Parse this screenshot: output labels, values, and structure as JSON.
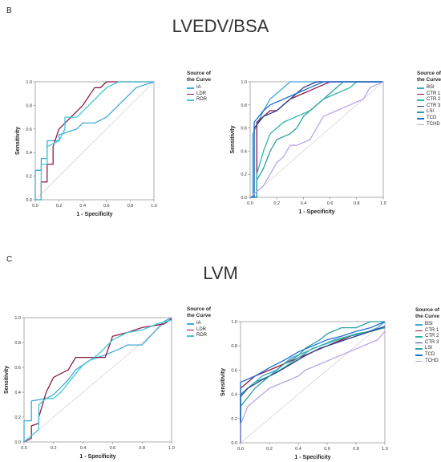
{
  "panels": [
    {
      "letter": "B",
      "title": "LVEDV/BSA"
    },
    {
      "letter": "C",
      "title": "LVM"
    }
  ],
  "legend_title": "Source of the Curve",
  "colors": {
    "IA": "#3fa9d6",
    "LDR": "#8b1a4a",
    "RDR": "#3fc7d9",
    "BSI": "#3fa9d6",
    "CTR 1": "#8b1a4a",
    "CTR 2": "#2cb6a9",
    "CTR 3": "#2c3f8c",
    "LSI": "#2ea0a3",
    "TCD": "#1f6fd0",
    "TCHD": "#b9a5e6"
  },
  "chart_data": [
    {
      "type": "line",
      "xlabel": "1 - Specificity",
      "ylabel": "Sensitivity",
      "xlim": [
        0,
        1
      ],
      "ylim": [
        0,
        1
      ],
      "xticks": [
        "0.0",
        "0.2",
        "0.4",
        "0.6",
        "0.8",
        "1.0"
      ],
      "yticks": [
        "0.0",
        "0.2",
        "0.4",
        "0.6",
        "0.8",
        "1.0"
      ],
      "series": [
        {
          "name": "IA",
          "x": [
            0,
            0,
            0.05,
            0.05,
            0.1,
            0.1,
            0.2,
            0.2,
            0.35,
            0.4,
            0.5,
            0.6,
            0.75,
            0.85,
            1
          ],
          "y": [
            0,
            0.25,
            0.25,
            0.35,
            0.35,
            0.5,
            0.5,
            0.55,
            0.6,
            0.65,
            0.65,
            0.7,
            0.85,
            0.95,
            1
          ]
        },
        {
          "name": "LDR",
          "x": [
            0,
            0.05,
            0.05,
            0.1,
            0.1,
            0.15,
            0.15,
            0.2,
            0.25,
            0.3,
            0.35,
            0.4,
            0.5,
            0.55,
            0.6,
            1
          ],
          "y": [
            0,
            0,
            0.15,
            0.15,
            0.3,
            0.3,
            0.45,
            0.6,
            0.65,
            0.7,
            0.75,
            0.8,
            0.95,
            0.95,
            1,
            1
          ]
        },
        {
          "name": "RDR",
          "x": [
            0,
            0.05,
            0.05,
            0.1,
            0.1,
            0.2,
            0.25,
            0.25,
            0.35,
            0.45,
            0.55,
            0.6,
            0.7,
            1
          ],
          "y": [
            0,
            0,
            0.3,
            0.3,
            0.45,
            0.5,
            0.6,
            0.7,
            0.7,
            0.8,
            0.9,
            0.95,
            1,
            1
          ]
        }
      ]
    },
    {
      "type": "line",
      "xlabel": "1 - Specificity",
      "ylabel": "Sensitivity",
      "xlim": [
        0,
        1
      ],
      "ylim": [
        0,
        1
      ],
      "xticks": [
        "0.0",
        "0.2",
        "0.4",
        "0.6",
        "0.8",
        "1.0"
      ],
      "yticks": [
        "0.0",
        "0.2",
        "0.4",
        "0.6",
        "0.8",
        "1.0"
      ],
      "series": [
        {
          "name": "BSI",
          "x": [
            0,
            0.02,
            0.02,
            0.08,
            0.1,
            0.15,
            0.2,
            0.25,
            0.3,
            0.38,
            1
          ],
          "y": [
            0,
            0,
            0.55,
            0.7,
            0.75,
            0.85,
            0.9,
            0.95,
            1,
            1,
            1
          ]
        },
        {
          "name": "CTR 1",
          "x": [
            0,
            0.05,
            0.05,
            0.1,
            0.15,
            0.2,
            0.25,
            0.3,
            0.4,
            0.5,
            0.6,
            1
          ],
          "y": [
            0,
            0,
            0.65,
            0.7,
            0.75,
            0.75,
            0.8,
            0.85,
            0.9,
            0.95,
            1,
            1
          ]
        },
        {
          "name": "CTR 2",
          "x": [
            0,
            0.05,
            0.05,
            0.1,
            0.15,
            0.2,
            0.25,
            0.35,
            0.45,
            0.55,
            0.65,
            0.75,
            0.8,
            1
          ],
          "y": [
            0,
            0,
            0.2,
            0.4,
            0.55,
            0.6,
            0.65,
            0.7,
            0.75,
            0.85,
            0.9,
            0.95,
            1,
            1
          ]
        },
        {
          "name": "CTR 3",
          "x": [
            0,
            0.03,
            0.03,
            0.1,
            0.2,
            0.25,
            0.3,
            0.35,
            0.4,
            0.5,
            1
          ],
          "y": [
            0,
            0,
            0.6,
            0.7,
            0.75,
            0.8,
            0.85,
            0.9,
            0.95,
            1,
            1
          ]
        },
        {
          "name": "LSI",
          "x": [
            0,
            0.05,
            0.05,
            0.1,
            0.15,
            0.2,
            0.3,
            0.35,
            0.4,
            0.5,
            0.6,
            0.7,
            1
          ],
          "y": [
            0,
            0,
            0.15,
            0.25,
            0.4,
            0.5,
            0.55,
            0.6,
            0.7,
            0.8,
            0.9,
            1,
            1
          ]
        },
        {
          "name": "TCD",
          "x": [
            0,
            0.03,
            0.03,
            0.1,
            0.15,
            0.25,
            0.35,
            0.45,
            0.55,
            0.65,
            1
          ],
          "y": [
            0,
            0,
            0.65,
            0.75,
            0.8,
            0.85,
            0.9,
            0.95,
            1,
            1,
            1
          ]
        },
        {
          "name": "TCHD",
          "x": [
            0,
            0.05,
            0.1,
            0.15,
            0.2,
            0.25,
            0.3,
            0.35,
            0.45,
            0.5,
            0.55,
            0.65,
            0.75,
            0.85,
            0.9,
            1
          ],
          "y": [
            0,
            0.05,
            0.1,
            0.2,
            0.3,
            0.35,
            0.45,
            0.45,
            0.5,
            0.6,
            0.7,
            0.75,
            0.8,
            0.85,
            0.95,
            1
          ]
        }
      ]
    },
    {
      "type": "line",
      "xlabel": "1 - Specificity",
      "ylabel": "Sensitivity",
      "xlim": [
        0,
        1
      ],
      "ylim": [
        0,
        1
      ],
      "xticks": [
        "0.0",
        "0.2",
        "0.4",
        "0.6",
        "0.8",
        "1.0"
      ],
      "yticks": [
        "0.0",
        "0.2",
        "0.4",
        "0.6",
        "0.8",
        "1.0"
      ],
      "series": [
        {
          "name": "IA",
          "x": [
            0,
            0,
            0.05,
            0.05,
            0.15,
            0.2,
            0.3,
            0.35,
            0.45,
            0.55,
            0.65,
            0.7,
            0.8,
            0.95,
            1
          ],
          "y": [
            0,
            0.17,
            0.17,
            0.33,
            0.35,
            0.38,
            0.5,
            0.58,
            0.66,
            0.7,
            0.75,
            0.78,
            0.78,
            0.97,
            1
          ]
        },
        {
          "name": "LDR",
          "x": [
            0,
            0.05,
            0.05,
            0.1,
            0.1,
            0.15,
            0.2,
            0.3,
            0.35,
            0.45,
            0.55,
            0.6,
            0.7,
            0.8,
            0.95,
            1
          ],
          "y": [
            0,
            0.03,
            0.13,
            0.15,
            0.2,
            0.4,
            0.52,
            0.58,
            0.68,
            0.68,
            0.68,
            0.85,
            0.88,
            0.92,
            0.95,
            0.99
          ]
        },
        {
          "name": "RDR",
          "x": [
            0,
            0.05,
            0.1,
            0.1,
            0.15,
            0.2,
            0.25,
            0.35,
            0.4,
            0.5,
            0.6,
            0.7,
            0.8,
            0.9,
            1
          ],
          "y": [
            0,
            0.05,
            0.1,
            0.3,
            0.35,
            0.35,
            0.4,
            0.55,
            0.62,
            0.7,
            0.82,
            0.88,
            0.9,
            0.95,
            0.98
          ]
        }
      ]
    },
    {
      "type": "line",
      "xlabel": "1 - Specificity",
      "ylabel": "Sensitivity",
      "xlim": [
        0,
        1
      ],
      "ylim": [
        0,
        1
      ],
      "xticks": [
        "0.0",
        "0.2",
        "0.4",
        "0.6",
        "0.8",
        "1.0"
      ],
      "yticks": [
        "0.0",
        "0.2",
        "0.4",
        "0.6",
        "0.8",
        "1.0"
      ],
      "series": [
        {
          "name": "BSI",
          "x": [
            0,
            0,
            0.05,
            0.1,
            0.15,
            0.25,
            0.35,
            0.45,
            0.55,
            0.65,
            0.75,
            0.85,
            0.95,
            1
          ],
          "y": [
            0,
            0.4,
            0.45,
            0.5,
            0.55,
            0.6,
            0.7,
            0.75,
            0.8,
            0.85,
            0.88,
            0.9,
            0.95,
            1
          ]
        },
        {
          "name": "CTR 1",
          "x": [
            0,
            0,
            0.05,
            0.1,
            0.2,
            0.3,
            0.4,
            0.5,
            0.6,
            0.7,
            0.8,
            0.9,
            1
          ],
          "y": [
            0,
            0.45,
            0.5,
            0.55,
            0.6,
            0.65,
            0.7,
            0.75,
            0.8,
            0.85,
            0.9,
            0.92,
            0.95
          ]
        },
        {
          "name": "CTR 2",
          "x": [
            0,
            0,
            0.1,
            0.2,
            0.3,
            0.4,
            0.5,
            0.6,
            0.7,
            0.8,
            0.9,
            1
          ],
          "y": [
            0,
            0.4,
            0.5,
            0.55,
            0.62,
            0.7,
            0.78,
            0.82,
            0.86,
            0.9,
            0.92,
            0.95
          ]
        },
        {
          "name": "CTR 3",
          "x": [
            0,
            0,
            0.05,
            0.15,
            0.25,
            0.35,
            0.45,
            0.55,
            0.65,
            0.75,
            0.85,
            0.95,
            1
          ],
          "y": [
            0,
            0.38,
            0.45,
            0.52,
            0.58,
            0.65,
            0.72,
            0.78,
            0.82,
            0.86,
            0.9,
            0.94,
            0.96
          ]
        },
        {
          "name": "LSI",
          "x": [
            0,
            0,
            0.1,
            0.2,
            0.3,
            0.4,
            0.45,
            0.55,
            0.6,
            0.7,
            0.8,
            0.9,
            1
          ],
          "y": [
            0,
            0.3,
            0.45,
            0.55,
            0.65,
            0.72,
            0.78,
            0.85,
            0.9,
            0.95,
            0.95,
            1,
            1
          ]
        },
        {
          "name": "TCD",
          "x": [
            0,
            0,
            0.1,
            0.2,
            0.3,
            0.4,
            0.5,
            0.6,
            0.7,
            0.8,
            0.9,
            1
          ],
          "y": [
            0,
            0.5,
            0.55,
            0.62,
            0.68,
            0.75,
            0.8,
            0.85,
            0.88,
            0.92,
            0.95,
            1
          ]
        },
        {
          "name": "TCHD",
          "x": [
            0,
            0,
            0.05,
            0.1,
            0.15,
            0.2,
            0.3,
            0.4,
            0.45,
            0.55,
            0.65,
            0.75,
            0.85,
            0.95,
            1
          ],
          "y": [
            0,
            0.15,
            0.3,
            0.35,
            0.4,
            0.45,
            0.5,
            0.55,
            0.6,
            0.65,
            0.7,
            0.75,
            0.8,
            0.85,
            0.92
          ]
        }
      ]
    }
  ]
}
